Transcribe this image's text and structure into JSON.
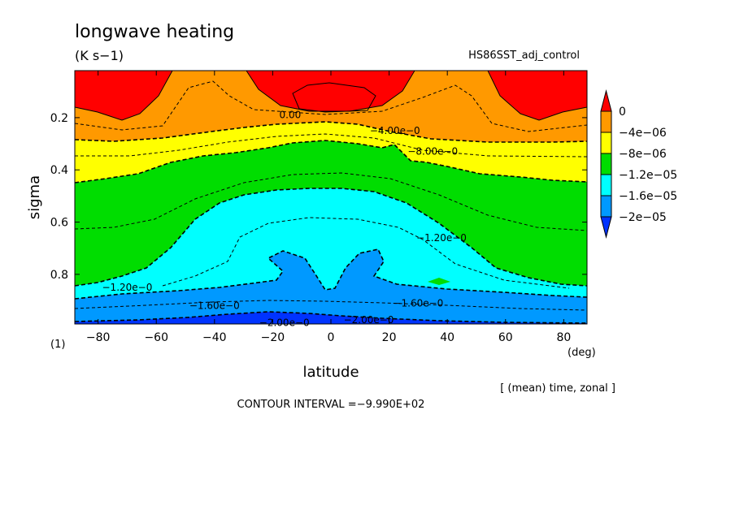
{
  "chart_data": {
    "type": "contour",
    "title": "longwave heating",
    "units": "(K s−1)",
    "run_name": "HS86SST_adj_control",
    "xlabel": "latitude",
    "x_unit": "(deg)",
    "ylabel": "sigma",
    "y_axis_note": "(1)",
    "averaging_note": "[ (mean) time, zonal ]",
    "contour_interval_note": "CONTOUR INTERVAL =−9.990E+02",
    "x_ticks": [
      "−80",
      "−60",
      "−40",
      "−20",
      "0",
      "20",
      "40",
      "60",
      "80"
    ],
    "y_ticks": [
      "0.2",
      "0.4",
      "0.6",
      "0.8"
    ],
    "x_range": [
      -88,
      88
    ],
    "y_range": [
      0.02,
      0.99
    ],
    "y_inverted": true,
    "colorbar": {
      "labels": [
        "0",
        "−4e−06",
        "−8e−06",
        "−1.2e−05",
        "−1.6e−05",
        "−2e−05"
      ],
      "colors": [
        "#ff0000",
        "#ff9900",
        "#ffff00",
        "#00dd00",
        "#00ffff",
        "#0099ff",
        "#0033ff"
      ]
    },
    "contour_labels": [
      {
        "text": "0.00",
        "lat": -14,
        "sigma": 0.19
      },
      {
        "text": "−4.00e−0",
        "lat": 22,
        "sigma": 0.25
      },
      {
        "text": "−8.00e−0",
        "lat": 35,
        "sigma": 0.33
      },
      {
        "text": "−1.20e−0",
        "lat": 38,
        "sigma": 0.66
      },
      {
        "text": "−1.20e−0",
        "lat": -70,
        "sigma": 0.85
      },
      {
        "text": "−1.60e−0",
        "lat": -40,
        "sigma": 0.92
      },
      {
        "text": "−1.60e−0",
        "lat": 30,
        "sigma": 0.91
      },
      {
        "text": "−2.00e−0",
        "lat": 13,
        "sigma": 0.975
      },
      {
        "text": "−2.00e−0",
        "lat": -16,
        "sigma": 0.985
      }
    ]
  }
}
